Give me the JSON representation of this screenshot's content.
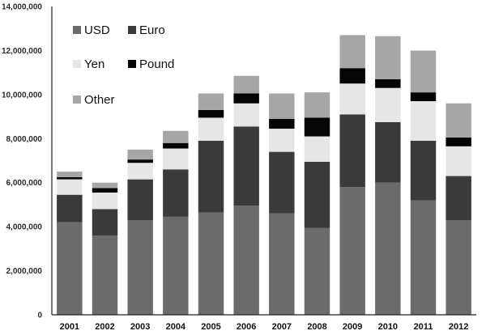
{
  "chart_data": {
    "type": "bar",
    "stacked": true,
    "categories": [
      "2001",
      "2002",
      "2003",
      "2004",
      "2005",
      "2006",
      "2007",
      "2008",
      "2009",
      "2010",
      "2011",
      "2012"
    ],
    "series": [
      {
        "name": "USD",
        "color": "#6b6b6b",
        "values": [
          4200000,
          3600000,
          4300000,
          4450000,
          4650000,
          4950000,
          4600000,
          3950000,
          5800000,
          6000000,
          5200000,
          4300000
        ]
      },
      {
        "name": "Euro",
        "color": "#3a3a3a",
        "values": [
          1250000,
          1200000,
          1850000,
          2150000,
          3250000,
          3600000,
          2800000,
          3000000,
          3300000,
          2750000,
          2700000,
          2000000
        ]
      },
      {
        "name": "Yen",
        "color": "#e6e6e6",
        "values": [
          700000,
          750000,
          750000,
          950000,
          1050000,
          1050000,
          1050000,
          1150000,
          1400000,
          1550000,
          1800000,
          1350000
        ]
      },
      {
        "name": "Pound",
        "color": "#050505",
        "values": [
          100000,
          200000,
          150000,
          250000,
          350000,
          450000,
          450000,
          850000,
          700000,
          400000,
          400000,
          400000
        ]
      },
      {
        "name": "Other",
        "color": "#a6a6a6",
        "values": [
          250000,
          250000,
          450000,
          550000,
          750000,
          800000,
          1150000,
          1150000,
          1500000,
          1950000,
          1900000,
          1550000
        ]
      }
    ],
    "y_ticks": [
      0,
      2000000,
      4000000,
      6000000,
      8000000,
      10000000,
      12000000,
      14000000
    ],
    "y_tick_labels": [
      "0",
      "2,000,000",
      "4,000,000",
      "6,000,000",
      "8,000,000",
      "10,000,000",
      "12,000,000",
      "14,000,000"
    ],
    "ylim": [
      0,
      14000000
    ],
    "title": "",
    "xlabel": "",
    "ylabel": "",
    "grid": false,
    "legend_position": "top-left"
  }
}
